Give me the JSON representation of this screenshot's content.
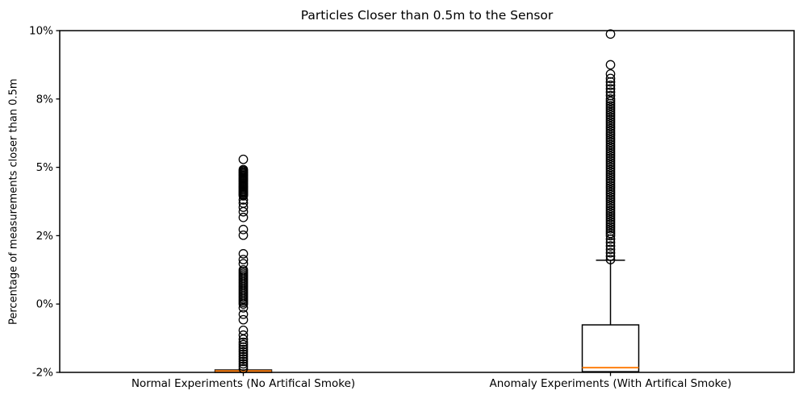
{
  "chart_data": {
    "type": "boxplot",
    "title": "Particles Closer than 0.5m to the Sensor",
    "ylabel": "Percentage of measurements closer than 0.5m",
    "xlabel": "",
    "grid": false,
    "legend": "none",
    "ytick_labels": [
      "10%",
      "8%",
      "5%",
      "2%",
      "0%",
      "-2%"
    ],
    "ytick_values": [
      10,
      8,
      5,
      2,
      0,
      -2
    ],
    "ylim": [
      -2,
      10
    ],
    "categories": [
      "Normal Experiments (No Artifical Smoke)",
      "Anomaly Experiments (With Artifical Smoke)"
    ],
    "colors": {
      "box_edge": "#000000",
      "median": "#ff7f0e",
      "outlier_edge": "#000000",
      "spine": "#000000",
      "background": "#ffffff"
    },
    "series": [
      {
        "name": "Normal Experiments (No Artifical Smoke)",
        "q1": -2.0,
        "median": -1.96,
        "q3": -1.93,
        "whisker_low": -2.0,
        "whisker_high": -1.93,
        "outliers": [
          5.35,
          4.9,
          4.85,
          4.8,
          4.75,
          4.7,
          4.65,
          4.6,
          4.55,
          4.5,
          4.45,
          4.4,
          4.35,
          4.3,
          4.25,
          4.2,
          4.15,
          4.1,
          4.05,
          4.0,
          3.95,
          3.9,
          3.85,
          3.8,
          3.75,
          3.57,
          3.43,
          3.25,
          3.05,
          2.8,
          2.27,
          2.02,
          1.47,
          1.3,
          1.18,
          1.0,
          0.95,
          0.9,
          0.85,
          0.8,
          0.75,
          0.7,
          0.65,
          0.6,
          0.55,
          0.5,
          0.45,
          0.4,
          0.35,
          0.3,
          0.25,
          0.2,
          0.15,
          0.1,
          0.05,
          0.0,
          -0.11,
          -0.3,
          -0.46,
          -0.77,
          -0.91,
          -1.03,
          -1.12,
          -1.19,
          -1.26,
          -1.33,
          -1.4,
          -1.47,
          -1.54,
          -1.61,
          -1.68,
          -1.75,
          -1.82,
          -1.89
        ]
      },
      {
        "name": "Anomaly Experiments (With Artifical Smoke)",
        "q1": -1.98,
        "median": -1.86,
        "q3": -0.61,
        "whisker_low": -2.0,
        "whisker_high": 1.28,
        "outliers": [
          9.9,
          9.0,
          8.73,
          8.6,
          8.5,
          8.4,
          8.3,
          8.2,
          8.1,
          8.0,
          7.9,
          7.8,
          7.7,
          7.6,
          7.5,
          7.4,
          7.3,
          7.2,
          7.1,
          7.0,
          6.9,
          6.8,
          6.7,
          6.6,
          6.5,
          6.4,
          6.3,
          6.2,
          6.1,
          6.0,
          5.9,
          5.8,
          5.7,
          5.6,
          5.5,
          5.4,
          5.3,
          5.2,
          5.1,
          5.0,
          4.9,
          4.8,
          4.7,
          4.6,
          4.5,
          4.4,
          4.3,
          4.2,
          4.1,
          4.0,
          3.9,
          3.8,
          3.7,
          3.6,
          3.5,
          3.4,
          3.3,
          3.2,
          3.1,
          3.0,
          2.9,
          2.8,
          2.7,
          2.6,
          2.5,
          2.4,
          2.3,
          2.2,
          2.1,
          2.0,
          1.9,
          1.8,
          1.7,
          1.6,
          1.5,
          1.4,
          1.3
        ]
      }
    ]
  }
}
